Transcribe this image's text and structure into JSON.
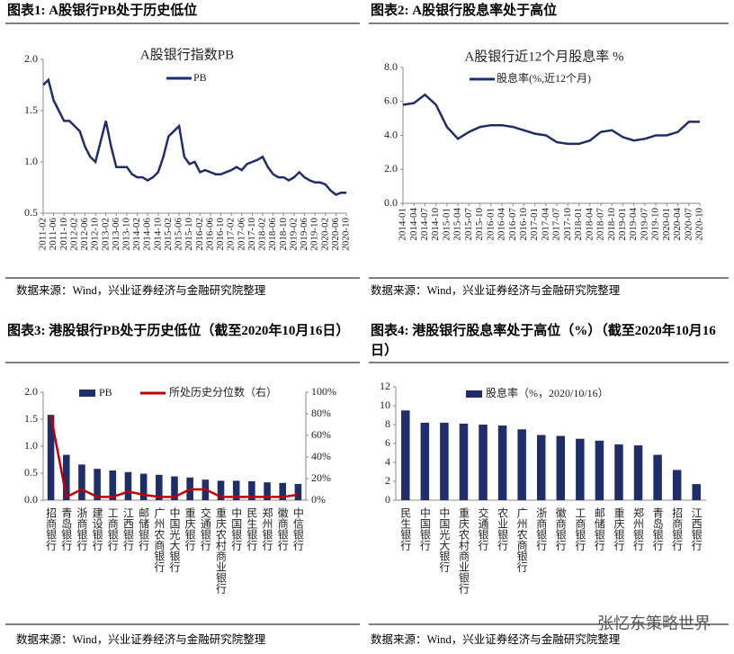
{
  "watermark": "张忆东策略世界",
  "chart_data": [
    {
      "type": "line",
      "caption": "图表1: A股银行PB处于历史低位",
      "title": "A股银行指数PB",
      "source": "数据来源：Wind，兴业证券经济与金融研究院整理",
      "x": [
        "2011-02",
        "2011-04",
        "2011-06",
        "2011-08",
        "2011-10",
        "2011-12",
        "2012-02",
        "2012-04",
        "2012-06",
        "2012-08",
        "2012-10",
        "2012-12",
        "2013-02",
        "2013-04",
        "2013-06",
        "2013-08",
        "2013-10",
        "2013-12",
        "2014-02",
        "2014-04",
        "2014-06",
        "2014-08",
        "2014-10",
        "2014-12",
        "2015-02",
        "2015-04",
        "2015-06",
        "2015-08",
        "2015-10",
        "2015-12",
        "2016-02",
        "2016-04",
        "2016-06",
        "2016-08",
        "2016-10",
        "2016-12",
        "2017-02",
        "2017-04",
        "2017-06",
        "2017-08",
        "2017-10",
        "2017-12",
        "2018-02",
        "2018-04",
        "2018-06",
        "2018-08",
        "2018-10",
        "2018-12",
        "2019-02",
        "2019-04",
        "2019-06",
        "2019-08",
        "2019-10",
        "2019-12",
        "2020-02",
        "2020-04",
        "2020-06",
        "2020-08",
        "2020-10"
      ],
      "series": [
        {
          "name": "PB",
          "color": "#1f2d6b",
          "values": [
            1.75,
            1.8,
            1.6,
            1.5,
            1.4,
            1.4,
            1.35,
            1.3,
            1.15,
            1.05,
            1.0,
            1.2,
            1.4,
            1.15,
            0.95,
            0.95,
            0.95,
            0.88,
            0.85,
            0.85,
            0.82,
            0.85,
            0.9,
            1.05,
            1.25,
            1.3,
            1.35,
            1.05,
            0.98,
            1.0,
            0.9,
            0.92,
            0.9,
            0.88,
            0.88,
            0.9,
            0.92,
            0.95,
            0.92,
            0.98,
            1.0,
            1.02,
            1.05,
            0.95,
            0.88,
            0.85,
            0.85,
            0.82,
            0.85,
            0.9,
            0.85,
            0.82,
            0.8,
            0.8,
            0.78,
            0.72,
            0.68,
            0.7,
            0.7
          ]
        }
      ],
      "xlim": [
        "2011-02",
        "2020-10"
      ],
      "xticks": [
        "2011-02",
        "2011-06",
        "2011-10",
        "2012-02",
        "2012-06",
        "2012-10",
        "2013-02",
        "2013-06",
        "2013-10",
        "2014-02",
        "2014-06",
        "2014-10",
        "2015-02",
        "2015-06",
        "2015-10",
        "2016-02",
        "2016-06",
        "2016-10",
        "2017-02",
        "2017-06",
        "2017-10",
        "2018-02",
        "2018-06",
        "2018-10",
        "2019-02",
        "2019-06",
        "2019-10",
        "2020-02",
        "2020-06",
        "2020-10"
      ],
      "ylim": [
        0.5,
        2.0
      ],
      "yticks": [
        0.5,
        {
          "value": 1,
          "label": "1.0"
        },
        1.5,
        {
          "value": 2,
          "label": "2.0"
        }
      ],
      "grid": false
    },
    {
      "type": "line",
      "caption": "图表2: A股银行股息率处于高位",
      "title": "A股银行近12个月股息率 %",
      "source": "数据来源：Wind，兴业证券经济与金融研究院整理",
      "x": [
        "2014-01",
        "2014-04",
        "2014-07",
        "2014-10",
        "2015-01",
        "2015-04",
        "2015-07",
        "2015-10",
        "2016-01",
        "2016-04",
        "2016-07",
        "2016-10",
        "2017-01",
        "2017-04",
        "2017-07",
        "2017-10",
        "2018-01",
        "2018-04",
        "2018-07",
        "2018-10",
        "2019-01",
        "2019-04",
        "2019-07",
        "2019-10",
        "2020-01",
        "2020-04",
        "2020-07",
        "2020-10"
      ],
      "series": [
        {
          "name": "股息率(%,近12个月)",
          "color": "#1f2d6b",
          "values": [
            5.8,
            5.9,
            6.4,
            5.8,
            4.5,
            3.8,
            4.2,
            4.5,
            4.6,
            4.6,
            4.5,
            4.3,
            4.1,
            4.0,
            3.6,
            3.5,
            3.5,
            3.7,
            4.2,
            4.3,
            3.9,
            3.7,
            3.8,
            4.0,
            4.0,
            4.2,
            4.8,
            4.8
          ]
        }
      ],
      "xlim": [
        "2014-01",
        "2020-10"
      ],
      "xticks": [
        "2014-01",
        "2014-04",
        "2014-07",
        "2014-10",
        "2015-01",
        "2015-04",
        "2015-07",
        "2015-10",
        "2016-01",
        "2016-04",
        "2016-07",
        "2016-10",
        "2017-01",
        "2017-04",
        "2017-07",
        "2017-10",
        "2018-01",
        "2018-04",
        "2018-07",
        "2018-10",
        "2019-01",
        "2019-04",
        "2019-07",
        "2019-10",
        "2020-01",
        "2020-04",
        "2020-07",
        "2020-10"
      ],
      "ylim": [
        0,
        8
      ],
      "yticks": [
        {
          "value": 0,
          "label": "0.0"
        },
        {
          "value": 2,
          "label": "2.0"
        },
        {
          "value": 4,
          "label": "4.0"
        },
        {
          "value": 6,
          "label": "6.0"
        },
        {
          "value": 8,
          "label": "8.0"
        }
      ],
      "grid": false
    },
    {
      "type": "combo",
      "caption": "图表3: 港股银行PB处于历史低位（截至2020年10月16日）",
      "source": "数据来源：Wind，兴业证券经济与金融研究院整理",
      "categories": [
        "招商银行",
        "青岛银行",
        "浙商银行",
        "建设银行",
        "工商银行",
        "江西银行",
        "邮储银行",
        "广州农商银行",
        "中国光大银行",
        "重庆银行",
        "交通银行",
        "重庆农村商业银行",
        "中国银行",
        "民生银行",
        "郑州银行",
        "徽商银行",
        "中信银行"
      ],
      "series": [
        {
          "name": "PB",
          "type": "bar",
          "color": "#1f2d6b",
          "values": [
            1.58,
            0.84,
            0.66,
            0.58,
            0.55,
            0.52,
            0.49,
            0.47,
            0.44,
            0.42,
            0.38,
            0.36,
            0.36,
            0.35,
            0.33,
            0.32,
            0.3
          ]
        },
        {
          "name": "所处历史分位数（右）",
          "type": "line",
          "axis": "y2",
          "color": "#c00000",
          "values": [
            78,
            3,
            10,
            3,
            3,
            8,
            5,
            3,
            3,
            10,
            10,
            3,
            3,
            3,
            3,
            3,
            5
          ]
        }
      ],
      "ylim": [
        0,
        2
      ],
      "yticks": [
        {
          "value": 0,
          "label": "0.0"
        },
        0.5,
        {
          "value": 1,
          "label": "1.0"
        },
        1.5,
        {
          "value": 2,
          "label": "2.0"
        }
      ],
      "y2lim": [
        0,
        100
      ],
      "y2ticks": [
        {
          "value": 0,
          "label": "0%"
        },
        {
          "value": 20,
          "label": "20%"
        },
        {
          "value": 40,
          "label": "40%"
        },
        {
          "value": 60,
          "label": "60%"
        },
        {
          "value": 80,
          "label": "80%"
        },
        {
          "value": 100,
          "label": "100%"
        }
      ],
      "grid": false
    },
    {
      "type": "bar",
      "caption": "图表4: 港股银行股息率处于高位（%）（截至2020年10月16日）",
      "source": "数据来源：Wind，兴业证券经济与金融研究院整理",
      "categories": [
        "民生银行",
        "中国银行",
        "中国光大银行",
        "重庆农村商业银行",
        "交通银行",
        "农业银行",
        "广州农商银行",
        "浙商银行",
        "徽商银行",
        "工商银行",
        "邮储银行",
        "重庆银行",
        "郑州银行",
        "青岛银行",
        "招商银行",
        "江西银行"
      ],
      "series": [
        {
          "name": "股息率（%，2020/10/16）",
          "type": "bar",
          "color": "#1f2d6b",
          "values": [
            9.5,
            8.2,
            8.2,
            8.1,
            8.0,
            7.9,
            7.5,
            6.9,
            6.8,
            6.5,
            6.3,
            5.9,
            5.8,
            4.8,
            3.2,
            1.7
          ]
        }
      ],
      "ylim": [
        0,
        12
      ],
      "yticks": [
        0,
        2,
        4,
        6,
        8,
        10,
        12
      ],
      "grid": false
    }
  ]
}
